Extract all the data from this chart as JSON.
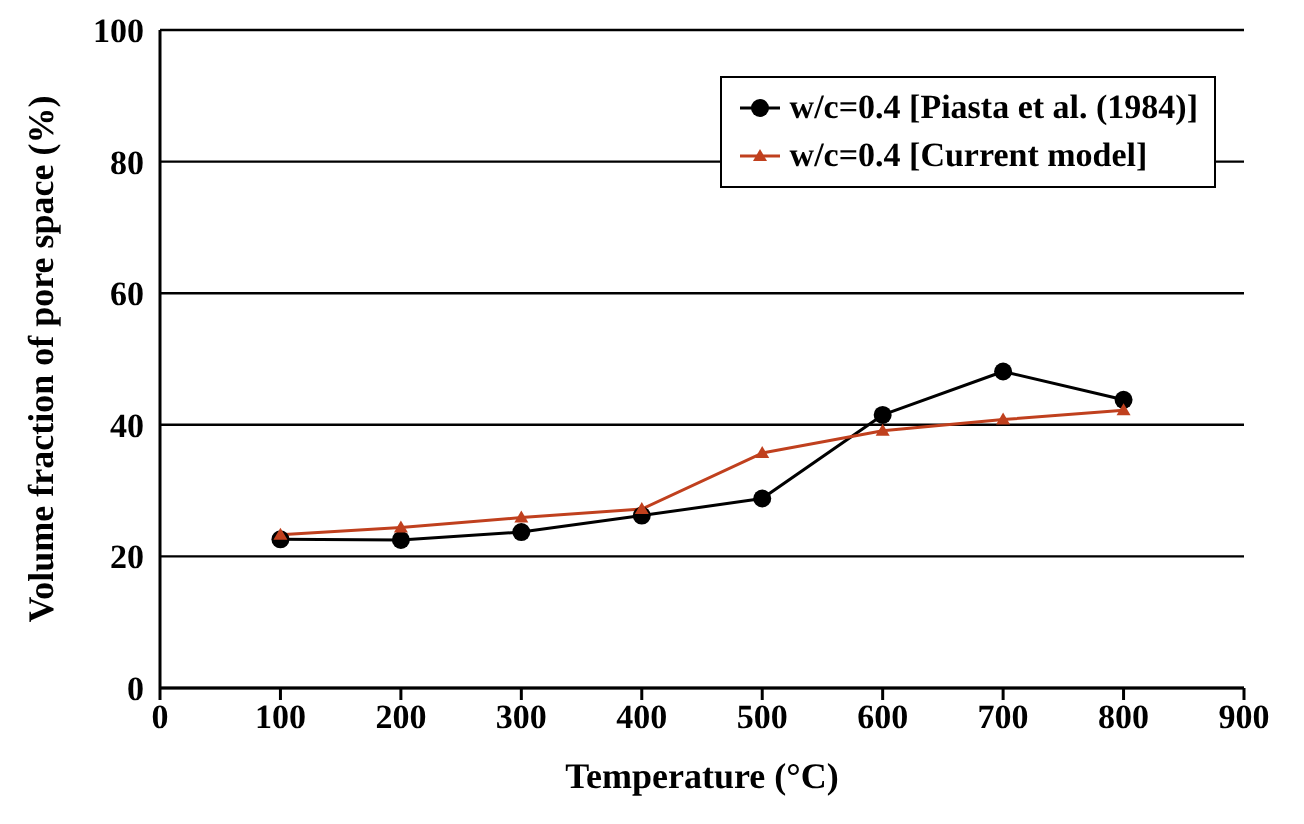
{
  "chart_data": {
    "type": "line",
    "xlabel": "Temperature (°C)",
    "ylabel": "Volume fraction of pore space (%)",
    "x": [
      100,
      200,
      300,
      400,
      500,
      600,
      700,
      800
    ],
    "series": [
      {
        "name": "w/c=0.4 [Piasta et al. (1984)]",
        "color": "#000000",
        "marker": "circle",
        "values": [
          22.6,
          22.5,
          23.7,
          26.2,
          28.8,
          41.5,
          48.1,
          43.8
        ]
      },
      {
        "name": "w/c=0.4 [Current model]",
        "color": "#c0401e",
        "marker": "triangle",
        "values": [
          23.3,
          24.4,
          25.9,
          27.2,
          35.7,
          39.1,
          40.8,
          42.2
        ]
      }
    ],
    "xlim": [
      0,
      900
    ],
    "xticks": [
      0,
      100,
      200,
      300,
      400,
      500,
      600,
      700,
      800,
      900
    ],
    "ylim": [
      0,
      100
    ],
    "yticks": [
      0,
      20,
      40,
      60,
      80,
      100
    ],
    "grid": "y",
    "legend": "top right"
  }
}
